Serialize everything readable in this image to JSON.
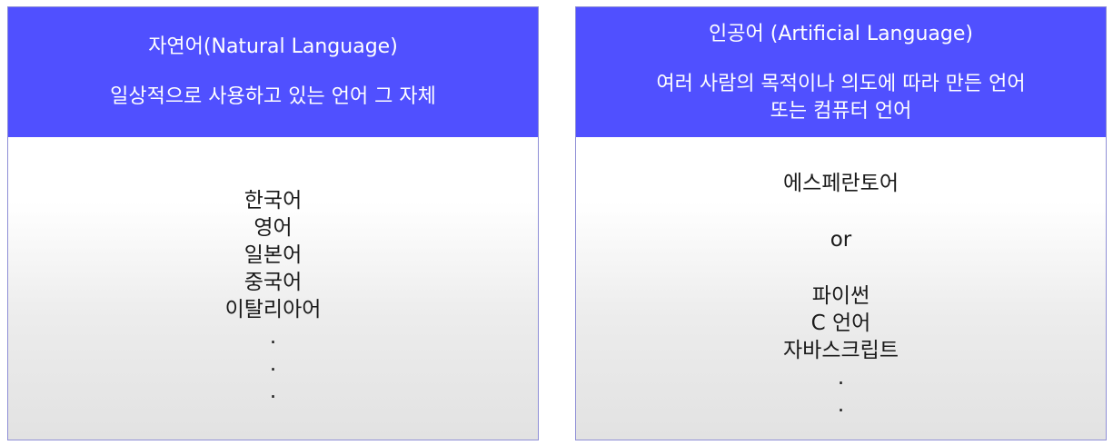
{
  "natural": {
    "title": "자연어(Natural Language)",
    "description": "일상적으로 사용하고 있는 언어 그 자체",
    "examples": [
      "한국어",
      "영어",
      "일본어",
      "중국어",
      "이탈리아어",
      ".",
      ".",
      "."
    ],
    "header_color": "#5050ff"
  },
  "artificial": {
    "title": "인공어 (Artificial Language)",
    "description_lines": [
      "여러 사람의 목적이나 의도에 따라 만든 언어",
      "또는 컴퓨터 언어"
    ],
    "examples_group1": [
      "에스페란토어"
    ],
    "separator": "or",
    "examples_group2": [
      "파이썬",
      "C 언어",
      "자바스크립트",
      ".",
      "."
    ],
    "header_color": "#5050ff"
  }
}
